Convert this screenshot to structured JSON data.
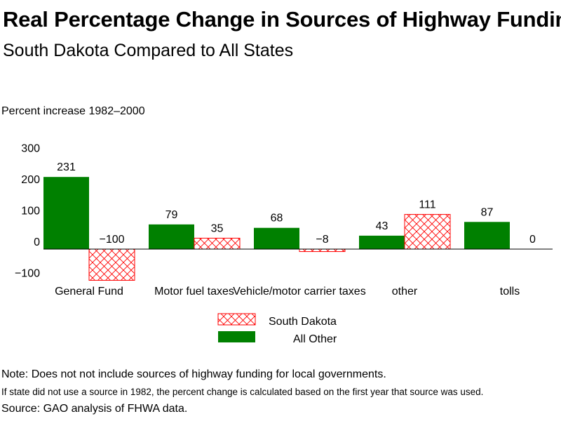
{
  "title": "Real Percentage Change in Sources of Highway Funding",
  "subtitle": "South Dakota Compared to All States",
  "ylabel": "Percent increase 1982–2000",
  "notes": {
    "note1": "Note: Does not not include sources of highway funding for local governments.",
    "note2": "If state did not use a source in 1982, the percent change is calculated based on the first year that source was used.",
    "source": "Source: GAO analysis of FHWA data."
  },
  "colors": {
    "all_other": "#008000",
    "south_dakota": "#ff0000"
  },
  "chart_data": {
    "type": "bar",
    "categories": [
      "General Fund",
      "Motor fuel taxes",
      "Vehicle/motor carrier taxes",
      "other",
      "tolls"
    ],
    "series": [
      {
        "name": "All Other",
        "values": [
          231,
          79,
          68,
          43,
          87
        ],
        "labels": [
          "231",
          "79",
          "68",
          "43",
          "87"
        ]
      },
      {
        "name": "South Dakota",
        "values": [
          -100,
          35,
          -8,
          111,
          0
        ],
        "labels": [
          "−100",
          "35",
          "−8",
          "111",
          "0"
        ]
      }
    ],
    "ylim": [
      -100,
      300
    ],
    "yticks": [
      300,
      200,
      100,
      0,
      -100
    ],
    "ytick_labels": [
      "300",
      "200",
      "100",
      "0",
      "−100"
    ],
    "legend": [
      "South Dakota",
      "All Other"
    ],
    "legend_position": "bottom-center",
    "grid": false
  }
}
